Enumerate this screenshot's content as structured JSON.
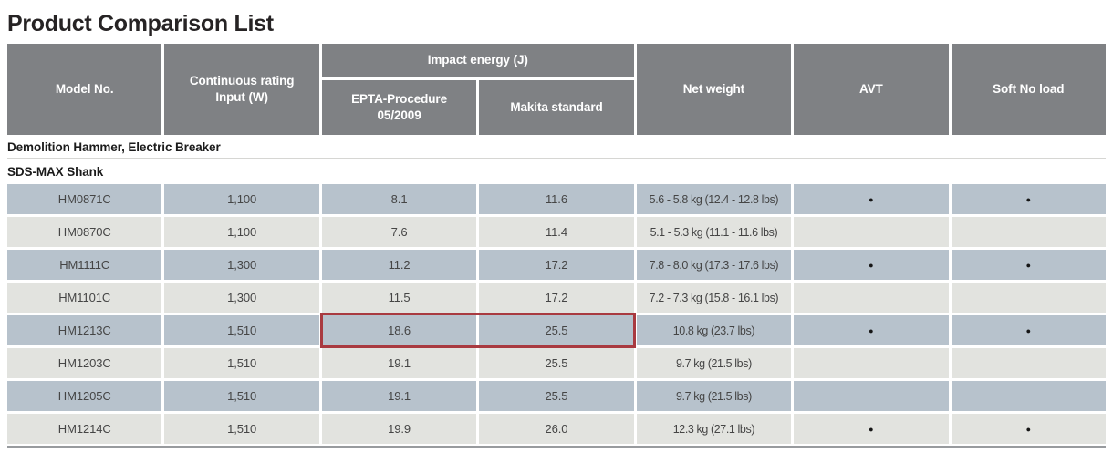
{
  "title": "Product Comparison List",
  "colors": {
    "header_bg": "#7f8184",
    "row_blue": "#b7c2cc",
    "row_light": "#e2e3df",
    "highlight_border": "#a93a40"
  },
  "table": {
    "headers": {
      "model": "Model No.",
      "rating": "Continuous rating\nInput (W)",
      "impact_energy": "Impact energy (J)",
      "epta": "EPTA-Procedure\n05/2009",
      "makita": "Makita standard",
      "net_weight": "Net weight",
      "avt": "AVT",
      "soft_no_load": "Soft No load"
    },
    "sections": [
      {
        "label": "Demolition Hammer, Electric Breaker"
      },
      {
        "label": "SDS-MAX Shank"
      }
    ],
    "highlight": {
      "model": "HM1213C",
      "columns": "Impact energy (J)"
    },
    "rows": [
      {
        "model": "HM0871C",
        "watts": "1,100",
        "epta": "8.1",
        "makita": "11.6",
        "weight": "5.6 - 5.8 kg (12.4 - 12.8 lbs)",
        "avt": "●",
        "soft": "●"
      },
      {
        "model": "HM0870C",
        "watts": "1,100",
        "epta": "7.6",
        "makita": "11.4",
        "weight": "5.1 - 5.3 kg (11.1 - 11.6 lbs)",
        "avt": "",
        "soft": ""
      },
      {
        "model": "HM1111C",
        "watts": "1,300",
        "epta": "11.2",
        "makita": "17.2",
        "weight": "7.8 - 8.0 kg (17.3 - 17.6 lbs)",
        "avt": "●",
        "soft": "●"
      },
      {
        "model": "HM1101C",
        "watts": "1,300",
        "epta": "11.5",
        "makita": "17.2",
        "weight": "7.2 - 7.3 kg (15.8 - 16.1 lbs)",
        "avt": "",
        "soft": ""
      },
      {
        "model": "HM1213C",
        "watts": "1,510",
        "epta": "18.6",
        "makita": "25.5",
        "weight": "10.8 kg (23.7 lbs)",
        "avt": "●",
        "soft": "●"
      },
      {
        "model": "HM1203C",
        "watts": "1,510",
        "epta": "19.1",
        "makita": "25.5",
        "weight": "9.7 kg (21.5 lbs)",
        "avt": "",
        "soft": ""
      },
      {
        "model": "HM1205C",
        "watts": "1,510",
        "epta": "19.1",
        "makita": "25.5",
        "weight": "9.7 kg (21.5 lbs)",
        "avt": "",
        "soft": ""
      },
      {
        "model": "HM1214C",
        "watts": "1,510",
        "epta": "19.9",
        "makita": "26.0",
        "weight": "12.3 kg (27.1 lbs)",
        "avt": "●",
        "soft": "●"
      }
    ]
  }
}
